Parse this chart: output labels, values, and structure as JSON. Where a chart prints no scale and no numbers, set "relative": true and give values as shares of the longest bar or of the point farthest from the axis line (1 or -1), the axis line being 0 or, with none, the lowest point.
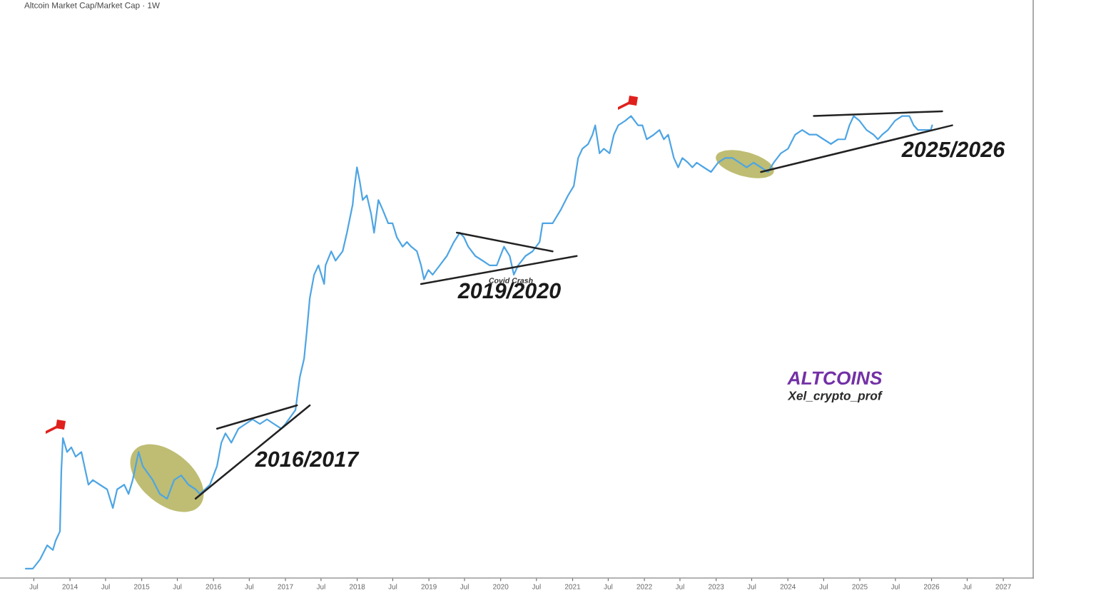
{
  "chart_data": {
    "type": "line",
    "title": "Altcoin Market Cap/Market Cap · 1W",
    "relative": true,
    "xlim": [
      "2013-01-10",
      "2027-06-02"
    ],
    "xticks": [
      {
        "value": "2013-07",
        "label": "Jul"
      },
      {
        "value": "2014-01",
        "label": "2014"
      },
      {
        "value": "2014-07",
        "label": "Jul"
      },
      {
        "value": "2015-01",
        "label": "2015"
      },
      {
        "value": "2015-07",
        "label": "Jul"
      },
      {
        "value": "2016-01",
        "label": "2016"
      },
      {
        "value": "2016-07",
        "label": "Jul"
      },
      {
        "value": "2017-01",
        "label": "2017"
      },
      {
        "value": "2017-07",
        "label": "Jul"
      },
      {
        "value": "2018-01",
        "label": "2018"
      },
      {
        "value": "2018-07",
        "label": "Jul"
      },
      {
        "value": "2019-01",
        "label": "2019"
      },
      {
        "value": "2019-07",
        "label": "Jul"
      },
      {
        "value": "2020-01",
        "label": "2020"
      },
      {
        "value": "2020-07",
        "label": "Jul"
      },
      {
        "value": "2021-01",
        "label": "2021"
      },
      {
        "value": "2021-07",
        "label": "Jul"
      },
      {
        "value": "2022-01",
        "label": "2022"
      },
      {
        "value": "2022-07",
        "label": "Jul"
      },
      {
        "value": "2023-01",
        "label": "2023"
      },
      {
        "value": "2023-07",
        "label": "Jul"
      },
      {
        "value": "2024-01",
        "label": "2024"
      },
      {
        "value": "2024-07",
        "label": "Jul"
      },
      {
        "value": "2025-01",
        "label": "2025"
      },
      {
        "value": "2025-07",
        "label": "Jul"
      },
      {
        "value": "2026-01",
        "label": "2026"
      },
      {
        "value": "2026-07",
        "label": "Jul"
      },
      {
        "value": "2027-01",
        "label": "2027"
      }
    ],
    "series": [
      {
        "color": "#4ea5e4",
        "x": [
          "2013-05-21",
          "2013-06-26",
          "2013-08-02",
          "2013-09-07",
          "2013-10-06",
          "2013-10-20",
          "2013-11-11",
          "2013-11-18",
          "2013-11-26",
          "2013-12-17",
          "2014-01-08",
          "2014-01-30",
          "2014-02-28",
          "2014-04-05",
          "2014-04-27",
          "2014-06-02",
          "2014-07-09",
          "2014-08-07",
          "2014-08-29",
          "2014-10-04",
          "2014-10-26",
          "2014-11-16",
          "2014-12-16",
          "2015-01-06",
          "2015-02-26",
          "2015-04-03",
          "2015-05-10",
          "2015-06-15",
          "2015-07-21",
          "2015-08-27",
          "2015-10-02",
          "2015-10-24",
          "2015-12-14",
          "2016-01-19",
          "2016-02-10",
          "2016-03-02",
          "2016-04-01",
          "2016-05-07",
          "2016-06-12",
          "2016-07-18",
          "2016-08-24",
          "2016-09-29",
          "2016-11-04",
          "2016-12-11",
          "2017-01-01",
          "2017-02-21",
          "2017-03-15",
          "2017-04-06",
          "2017-04-20",
          "2017-05-05",
          "2017-05-27",
          "2017-06-18",
          "2017-07-17",
          "2017-07-24",
          "2017-08-22",
          "2017-09-13",
          "2017-10-19",
          "2017-11-10",
          "2017-12-09",
          "2017-12-16",
          "2017-12-31",
          "2018-01-14",
          "2018-01-29",
          "2018-02-19",
          "2018-03-13",
          "2018-03-28",
          "2018-04-19",
          "2018-05-10",
          "2018-06-08",
          "2018-06-30",
          "2018-07-22",
          "2018-08-20",
          "2018-09-11",
          "2018-10-03",
          "2018-11-01",
          "2018-11-22",
          "2018-12-07",
          "2018-12-29",
          "2019-01-20",
          "2019-02-25",
          "2019-04-02",
          "2019-05-08",
          "2019-06-07",
          "2019-06-28",
          "2019-07-20",
          "2019-08-25",
          "2019-10-01",
          "2019-11-06",
          "2019-12-12",
          "2020-01-18",
          "2020-02-16",
          "2020-03-08",
          "2020-03-30",
          "2020-05-06",
          "2020-06-11",
          "2020-07-17",
          "2020-08-01",
          "2020-09-21",
          "2020-11-03",
          "2020-12-09",
          "2021-01-07",
          "2021-01-29",
          "2021-02-20",
          "2021-03-21",
          "2021-04-12",
          "2021-04-26",
          "2021-05-18",
          "2021-06-09",
          "2021-07-08",
          "2021-07-30",
          "2021-08-21",
          "2021-09-26",
          "2021-10-25",
          "2021-11-30",
          "2021-12-22",
          "2022-01-13",
          "2022-02-18",
          "2022-03-19",
          "2022-04-10",
          "2022-05-02",
          "2022-05-31",
          "2022-06-22",
          "2022-07-13",
          "2022-08-11",
          "2022-09-02",
          "2022-09-24",
          "2022-10-30",
          "2022-12-06",
          "2023-01-11",
          "2023-02-16",
          "2023-03-25",
          "2023-04-30",
          "2023-06-05",
          "2023-07-11",
          "2023-08-17",
          "2023-09-22",
          "2023-10-21",
          "2023-11-26",
          "2024-01-02",
          "2024-02-07",
          "2024-03-14",
          "2024-04-20",
          "2024-05-26",
          "2024-07-01",
          "2024-08-07",
          "2024-09-12",
          "2024-10-18",
          "2024-11-09",
          "2024-12-01",
          "2024-12-30",
          "2025-02-04",
          "2025-03-12",
          "2025-04-03",
          "2025-04-25",
          "2025-05-24",
          "2025-06-29",
          "2025-08-05",
          "2025-09-10",
          "2025-10-02",
          "2025-10-24",
          "2025-11-22",
          "2025-12-28",
          "2026-01-04"
        ],
        "values": [
          0.02,
          0.02,
          0.04,
          0.07,
          0.06,
          0.08,
          0.1,
          0.23,
          0.3,
          0.27,
          0.28,
          0.26,
          0.27,
          0.2,
          0.21,
          0.2,
          0.19,
          0.15,
          0.19,
          0.2,
          0.18,
          0.21,
          0.27,
          0.24,
          0.21,
          0.18,
          0.17,
          0.21,
          0.22,
          0.2,
          0.19,
          0.18,
          0.2,
          0.24,
          0.29,
          0.31,
          0.29,
          0.32,
          0.33,
          0.34,
          0.33,
          0.34,
          0.33,
          0.32,
          0.33,
          0.36,
          0.43,
          0.47,
          0.53,
          0.6,
          0.65,
          0.67,
          0.63,
          0.67,
          0.7,
          0.68,
          0.7,
          0.74,
          0.8,
          0.83,
          0.88,
          0.85,
          0.81,
          0.82,
          0.78,
          0.74,
          0.81,
          0.79,
          0.76,
          0.76,
          0.73,
          0.71,
          0.72,
          0.71,
          0.7,
          0.67,
          0.64,
          0.66,
          0.65,
          0.67,
          0.69,
          0.72,
          0.74,
          0.73,
          0.71,
          0.69,
          0.68,
          0.67,
          0.67,
          0.71,
          0.69,
          0.65,
          0.67,
          0.69,
          0.7,
          0.72,
          0.76,
          0.76,
          0.79,
          0.82,
          0.84,
          0.9,
          0.92,
          0.93,
          0.95,
          0.97,
          0.91,
          0.92,
          0.91,
          0.95,
          0.97,
          0.98,
          0.99,
          0.97,
          0.97,
          0.94,
          0.95,
          0.96,
          0.94,
          0.95,
          0.9,
          0.88,
          0.9,
          0.89,
          0.88,
          0.89,
          0.88,
          0.87,
          0.89,
          0.9,
          0.9,
          0.89,
          0.88,
          0.89,
          0.88,
          0.87,
          0.89,
          0.91,
          0.92,
          0.95,
          0.96,
          0.95,
          0.95,
          0.94,
          0.93,
          0.94,
          0.94,
          0.97,
          0.99,
          0.98,
          0.96,
          0.95,
          0.94,
          0.95,
          0.96,
          0.98,
          0.99,
          0.99,
          0.97,
          0.96,
          0.96,
          0.96,
          0.97
        ]
      },
      {
        "type": "line",
        "color": "#222222",
        "x": [
          "2016-01-19",
          "2017-03-01"
        ],
        "values": [
          0.32,
          0.37
        ]
      },
      {
        "type": "line",
        "color": "#222222",
        "x": [
          "2015-10-02",
          "2017-05-05"
        ],
        "values": [
          0.17,
          0.37
        ]
      },
      {
        "type": "line",
        "color": "#222222",
        "x": [
          "2019-05-23",
          "2020-09-21"
        ],
        "values": [
          0.74,
          0.7
        ]
      },
      {
        "type": "line",
        "color": "#222222",
        "x": [
          "2018-11-22",
          "2021-01-22"
        ],
        "values": [
          0.63,
          0.69
        ]
      },
      {
        "type": "line",
        "color": "#222222",
        "x": [
          "2024-05-12",
          "2026-02-24"
        ],
        "values": [
          0.99,
          1.0
        ]
      },
      {
        "type": "line",
        "color": "#222222",
        "x": [
          "2023-08-17",
          "2026-04-16"
        ],
        "values": [
          0.87,
          0.97
        ]
      }
    ],
    "annotations": [
      "2016/2017",
      "2019/2020",
      "2025/2026",
      "ALTCOINS",
      "Xel_crypto_prof",
      {
        "text": "Covid Crash",
        "x": "2020-03-08",
        "y": 0.65
      }
    ]
  }
}
